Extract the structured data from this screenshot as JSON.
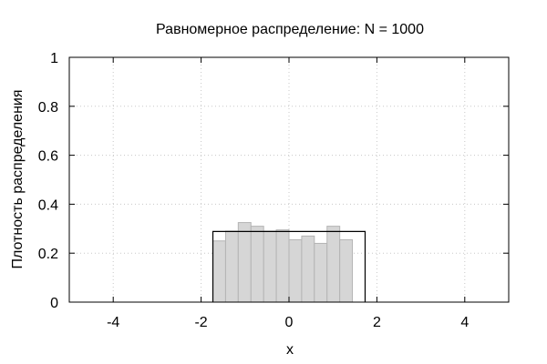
{
  "chart_data": {
    "type": "bar",
    "title": "Равномерное распределение: N = 1000",
    "xlabel": "x",
    "ylabel": "Плотность распределения",
    "xlim": [
      -5,
      5
    ],
    "ylim": [
      0,
      1
    ],
    "xticks": [
      -4,
      -2,
      0,
      2,
      4
    ],
    "yticks": [
      0,
      0.2,
      0.4,
      0.6,
      0.8,
      1
    ],
    "ytick_labels": [
      "0",
      "0.2",
      "0.4",
      "0.6",
      "0.8",
      "1"
    ],
    "grid": true,
    "histogram": {
      "bin_edges": [
        -1.732,
        -1.443,
        -1.155,
        -0.866,
        -0.577,
        -0.289,
        0.0,
        0.289,
        0.577,
        0.866,
        1.155,
        1.443,
        1.732
      ],
      "densities": [
        0.25,
        0.29,
        0.325,
        0.31,
        0.29,
        0.295,
        0.255,
        0.27,
        0.24,
        0.31,
        0.255,
        0.0
      ]
    },
    "theoretical_density": {
      "x_range": [
        -1.732,
        1.732
      ],
      "value": 0.2887
    },
    "colors": {
      "bar_fill": "#d6d6d6",
      "bar_edge": "#b4b4b4",
      "density_line": "#000000",
      "grid": "#c8c8c8"
    }
  }
}
